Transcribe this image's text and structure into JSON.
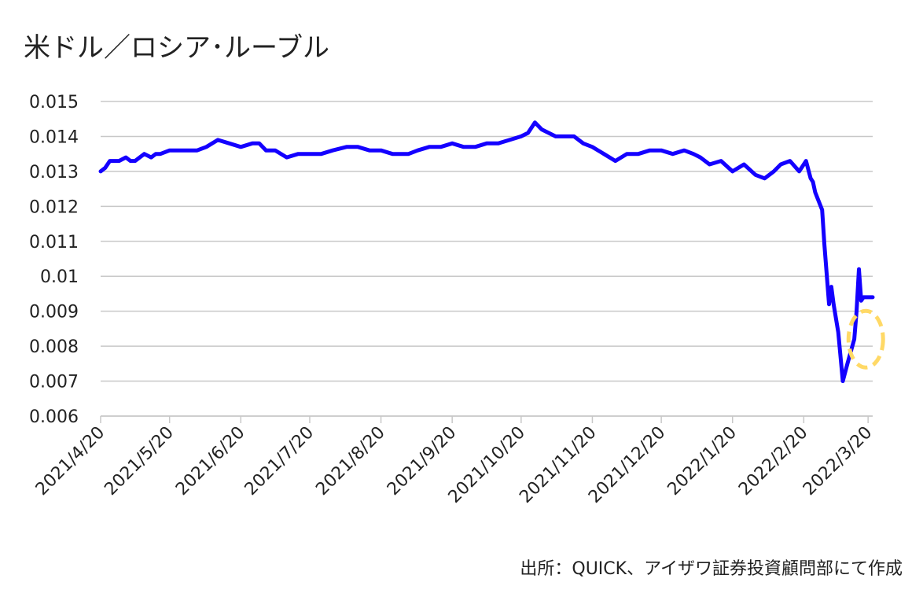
{
  "chart_data": {
    "type": "line",
    "title": "米ドル／ロシア･ルーブル",
    "xlabel": "",
    "ylabel": "",
    "source": "出所：QUICK、アイザワ証券投資顧問部にて作成",
    "x_start": "2021/4/20",
    "x_end": "2022/3/22",
    "ylim": [
      0.006,
      0.015
    ],
    "y_ticks": [
      "0.015",
      "0.014",
      "0.013",
      "0.012",
      "0.011",
      "0.01",
      "0.009",
      "0.008",
      "0.007",
      "0.006"
    ],
    "x_ticks": [
      "2021/4/20",
      "2021/5/20",
      "2021/6/20",
      "2021/7/20",
      "2021/8/20",
      "2021/9/20",
      "2021/10/20",
      "2021/11/20",
      "2021/12/20",
      "2022/1/20",
      "2022/2/20",
      "2022/3/20"
    ],
    "grid": "horizontal",
    "line_color": "#1400ff",
    "highlight_color": "#ffd966",
    "highlight_x": "2022/3/19",
    "highlight_y": 0.0082,
    "series": [
      {
        "name": "",
        "x": [
          "2021/4/20",
          "2021/4/22",
          "2021/4/24",
          "2021/4/28",
          "2021/5/1",
          "2021/5/3",
          "2021/5/5",
          "2021/5/7",
          "2021/5/9",
          "2021/5/12",
          "2021/5/14",
          "2021/5/16",
          "2021/5/20",
          "2021/5/25",
          "2021/5/30",
          "2021/6/1",
          "2021/6/5",
          "2021/6/10",
          "2021/6/15",
          "2021/6/20",
          "2021/6/25",
          "2021/6/28",
          "2021/7/1",
          "2021/7/5",
          "2021/7/10",
          "2021/7/15",
          "2021/7/20",
          "2021/7/25",
          "2021/7/30",
          "2021/8/5",
          "2021/8/10",
          "2021/8/15",
          "2021/8/20",
          "2021/8/25",
          "2021/8/30",
          "2021/9/1",
          "2021/9/5",
          "2021/9/10",
          "2021/9/15",
          "2021/9/20",
          "2021/9/25",
          "2021/9/30",
          "2021/10/5",
          "2021/10/10",
          "2021/10/15",
          "2021/10/20",
          "2021/10/23",
          "2021/10/26",
          "2021/10/29",
          "2021/11/1",
          "2021/11/4",
          "2021/11/8",
          "2021/11/12",
          "2021/11/16",
          "2021/11/20",
          "2021/11/25",
          "2021/11/30",
          "2021/12/5",
          "2021/12/10",
          "2021/12/15",
          "2021/12/20",
          "2021/12/25",
          "2021/12/30",
          "2022/1/3",
          "2022/1/6",
          "2022/1/10",
          "2022/1/15",
          "2022/1/20",
          "2022/1/25",
          "2022/1/30",
          "2022/2/3",
          "2022/2/7",
          "2022/2/10",
          "2022/2/14",
          "2022/2/18",
          "2022/2/21",
          "2022/2/23",
          "2022/2/24",
          "2022/2/25",
          "2022/2/28",
          "2022/3/1",
          "2022/3/3",
          "2022/3/4",
          "2022/3/5",
          "2022/3/7",
          "2022/3/9",
          "2022/3/11",
          "2022/3/14",
          "2022/3/15",
          "2022/3/16",
          "2022/3/17",
          "2022/3/18",
          "2022/3/21",
          "2022/3/22"
        ],
        "y": [
          0.013,
          0.0131,
          0.0133,
          0.0133,
          0.0134,
          0.0133,
          0.0133,
          0.0134,
          0.0135,
          0.0134,
          0.0135,
          0.0135,
          0.0136,
          0.0136,
          0.0136,
          0.0136,
          0.0137,
          0.0139,
          0.0138,
          0.0137,
          0.0138,
          0.0138,
          0.0136,
          0.0136,
          0.0134,
          0.0135,
          0.0135,
          0.0135,
          0.0136,
          0.0137,
          0.0137,
          0.0136,
          0.0136,
          0.0135,
          0.0135,
          0.0135,
          0.0136,
          0.0137,
          0.0137,
          0.0138,
          0.0137,
          0.0137,
          0.0138,
          0.0138,
          0.0139,
          0.014,
          0.0141,
          0.0144,
          0.0142,
          0.0141,
          0.014,
          0.014,
          0.014,
          0.0138,
          0.0137,
          0.0135,
          0.0133,
          0.0135,
          0.0135,
          0.0136,
          0.0136,
          0.0135,
          0.0136,
          0.0135,
          0.0134,
          0.0132,
          0.0133,
          0.013,
          0.0132,
          0.0129,
          0.0128,
          0.013,
          0.0132,
          0.0133,
          0.013,
          0.0133,
          0.0128,
          0.0127,
          0.0124,
          0.0119,
          0.0109,
          0.0092,
          0.0097,
          0.0092,
          0.0084,
          0.007,
          0.0075,
          0.0082,
          0.009,
          0.0102,
          0.0093,
          0.0094,
          0.0094,
          0.0094
        ]
      }
    ]
  }
}
